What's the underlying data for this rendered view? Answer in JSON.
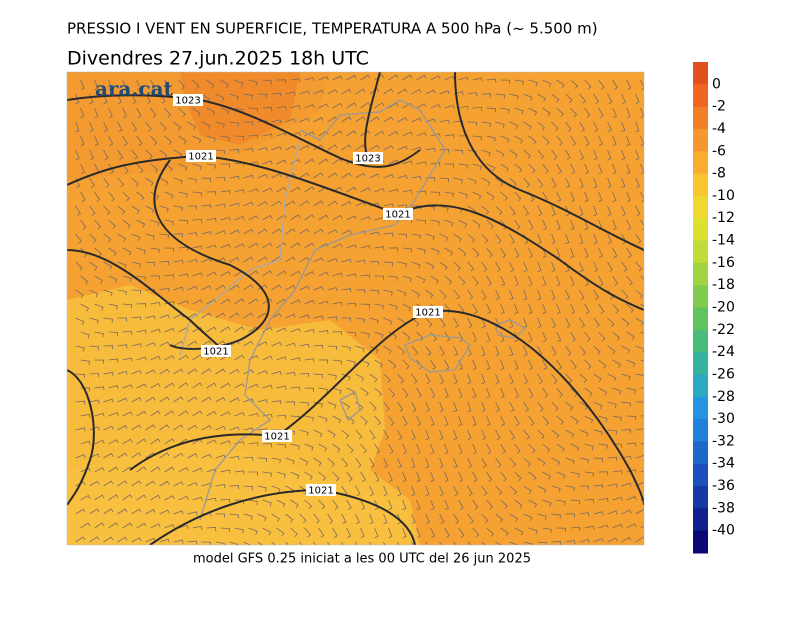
{
  "header": {
    "title": "PRESSIO I VENT EN SUPERFICIE, TEMPERATURA A 500 hPa (~ 5.500 m)",
    "subtitle": "Divendres  27.jun.2025  18h  UTC"
  },
  "logo": "ara.cat",
  "isobar_labels": [
    1023,
    1023,
    1021,
    1021,
    1021,
    1021,
    1021,
    1021
  ],
  "colorbar": {
    "ticks": [
      0,
      -2,
      -4,
      -6,
      -8,
      -10,
      -12,
      -14,
      -16,
      -18,
      -20,
      -22,
      -24,
      -26,
      -28,
      -30,
      -32,
      -34,
      -36,
      -38,
      -40
    ],
    "colors": [
      "#e0501a",
      "#ee6622",
      "#f37e28",
      "#f69630",
      "#f8ac30",
      "#f8c430",
      "#f0d830",
      "#dce030",
      "#c0dc38",
      "#a0d444",
      "#80cc4c",
      "#60c45c",
      "#48bc78",
      "#34b49c",
      "#2ca8c0",
      "#2494e0",
      "#2080dc",
      "#1e68cc",
      "#1c50bc",
      "#1838a4",
      "#10208c",
      "#0c0874"
    ]
  },
  "footer": "model GFS 0.25 iniciat a les 00 UTC del 26 jun 2025"
}
